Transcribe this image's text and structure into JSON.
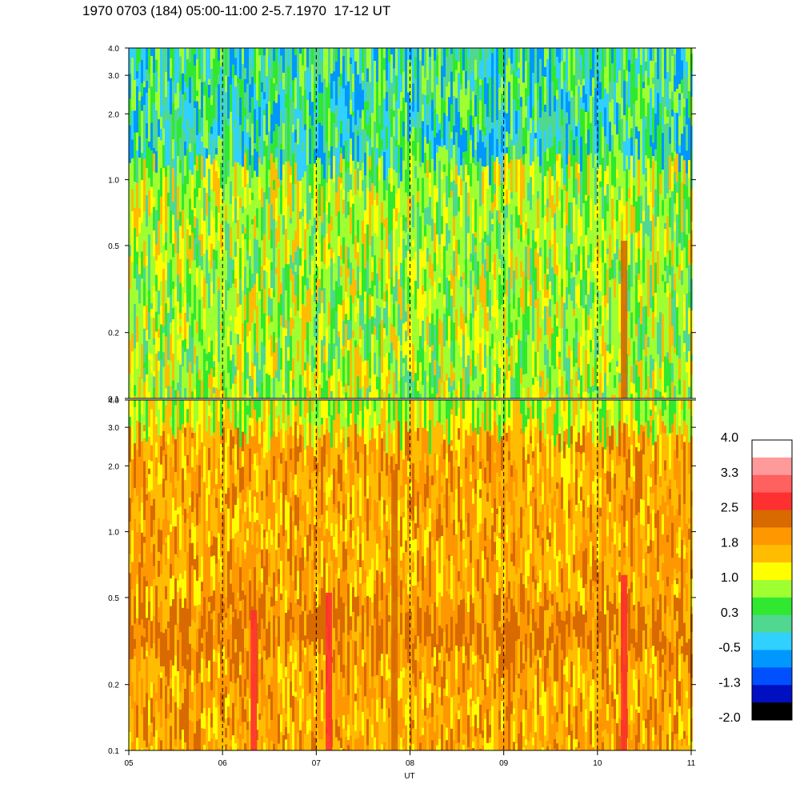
{
  "chart_data": {
    "type": "heatmap",
    "title": "1970 0703 (184) 05:00-11:00 2-5.7.1970  17-12 UT",
    "xlabel": "UT",
    "x_ticks": [
      "05",
      "06",
      "07",
      "08",
      "09",
      "10",
      "11"
    ],
    "x_range": [
      5,
      11
    ],
    "panels": [
      {
        "name": "upper",
        "y_scale": "log",
        "ylim": [
          0.1,
          4.0
        ],
        "y_ticks": [
          {
            "value": 0.1,
            "label": "0.1"
          },
          {
            "value": 0.2,
            "label": "0.2"
          },
          {
            "value": 0.5,
            "label": "0.5"
          },
          {
            "value": 1.0,
            "label": "1.0"
          },
          {
            "value": 2.0,
            "label": "2.0"
          },
          {
            "value": 3.0,
            "label": "3.0"
          },
          {
            "value": 4.0,
            "label": "4.0"
          }
        ],
        "dominant_levels": [
          0.3,
          1.0,
          -0.5
        ]
      },
      {
        "name": "lower",
        "y_scale": "log",
        "ylim": [
          0.1,
          4.0
        ],
        "y_ticks": [
          {
            "value": 0.1,
            "label": "0.1"
          },
          {
            "value": 0.2,
            "label": "0.2"
          },
          {
            "value": 0.5,
            "label": "0.5"
          },
          {
            "value": 1.0,
            "label": "1.0"
          },
          {
            "value": 2.0,
            "label": "2.0"
          },
          {
            "value": 3.0,
            "label": "3.0"
          },
          {
            "value": 4.0,
            "label": "4.0"
          }
        ],
        "dominant_levels": [
          1.8,
          2.2,
          1.0
        ]
      }
    ],
    "dashed_hour_lines": [
      6,
      7,
      8,
      9,
      10
    ],
    "colorbar": {
      "labels": [
        "4.0",
        "3.3",
        "2.5",
        "1.8",
        "1.0",
        "0.3",
        "-0.5",
        "-1.3",
        "-2.0"
      ],
      "colors": [
        "#ffffff",
        "#ff9a9a",
        "#ff6060",
        "#ff3030",
        "#d86a00",
        "#ff9800",
        "#ffbc00",
        "#ffff00",
        "#a0ff30",
        "#30e830",
        "#50d890",
        "#30d0ff",
        "#0098ff",
        "#0050ff",
        "#0010c0",
        "#000000"
      ]
    }
  }
}
